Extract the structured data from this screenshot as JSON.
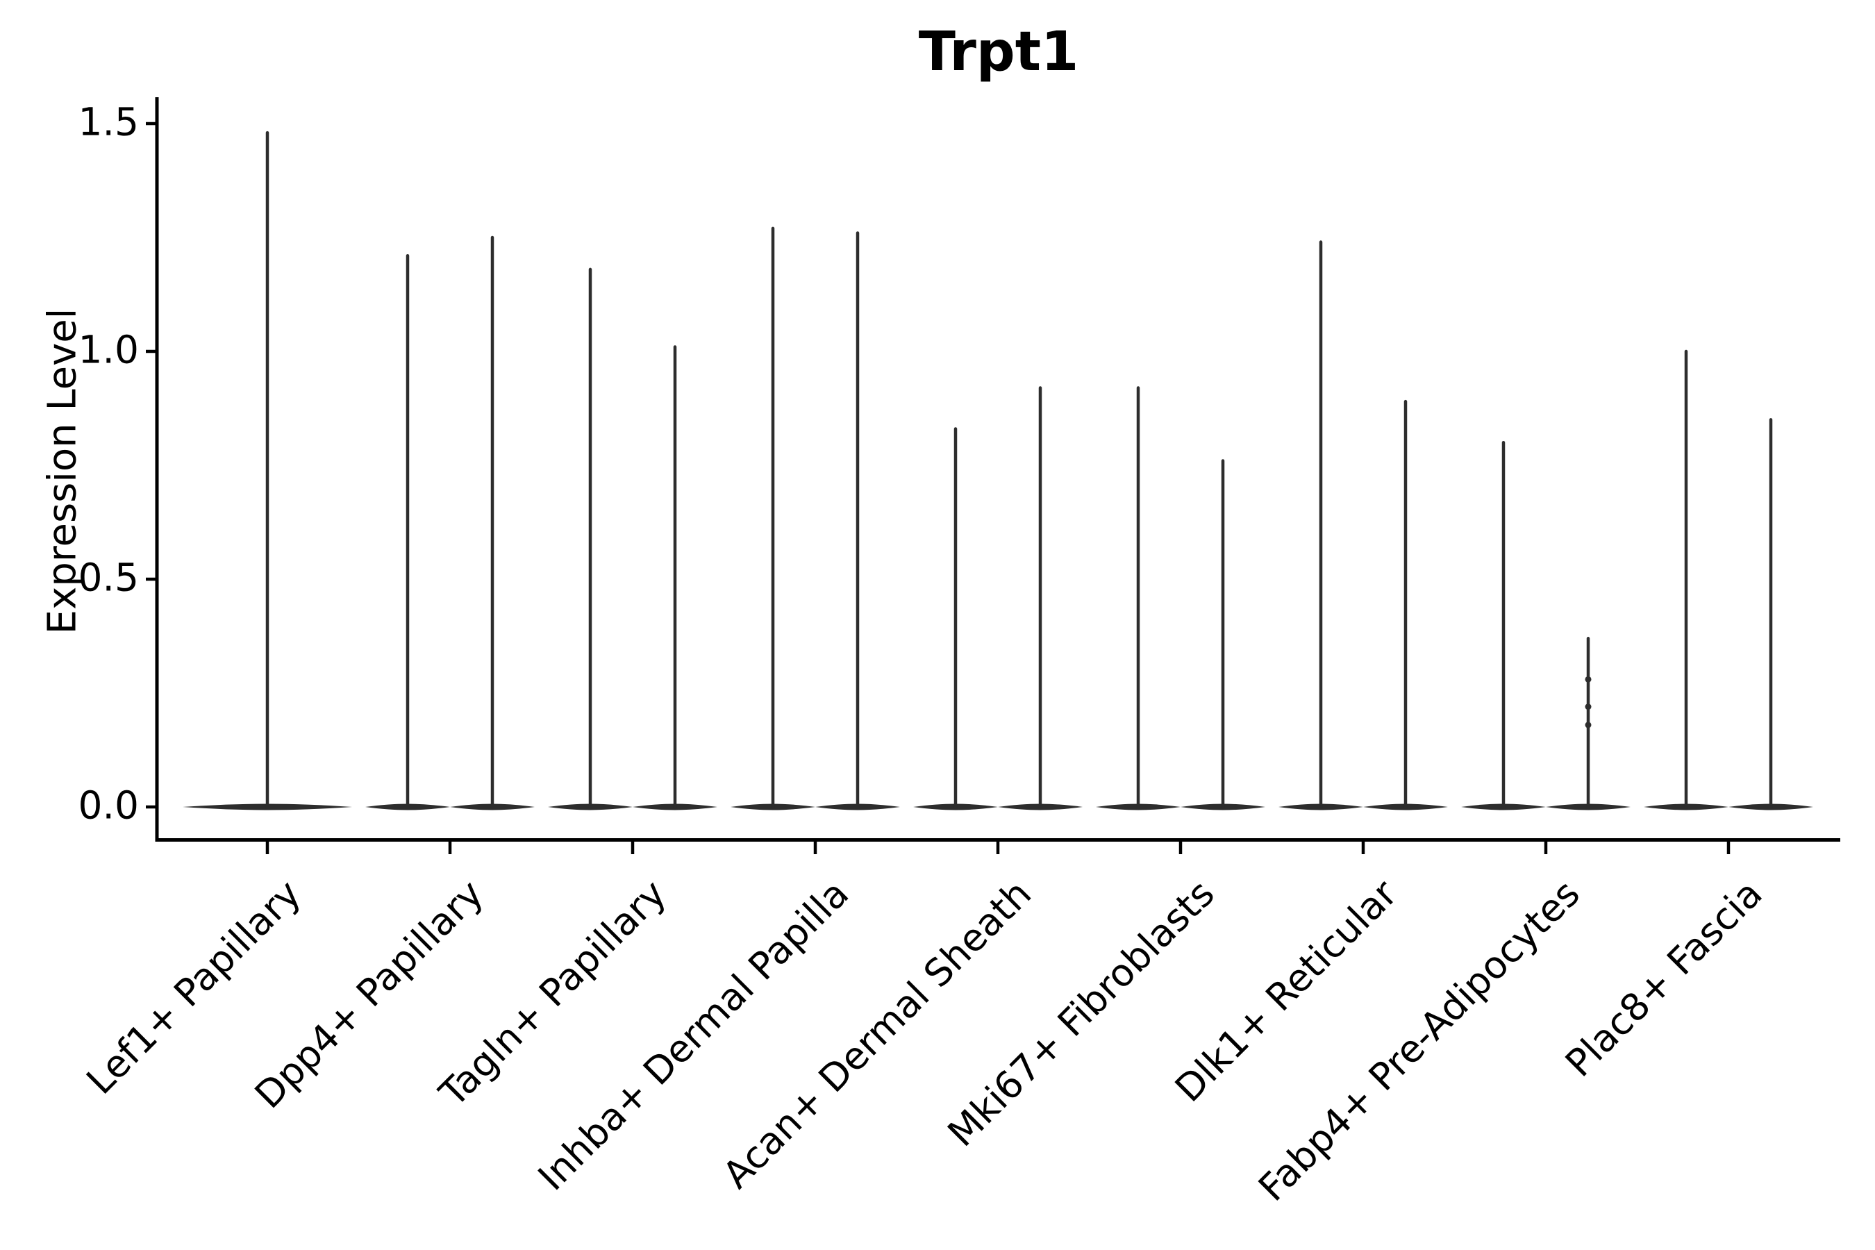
{
  "figure": {
    "title": "Trpt1",
    "ylabel": "Expression Level"
  },
  "chart_data": {
    "type": "violin",
    "title": "Trpt1",
    "xlabel": "",
    "ylabel": "Expression Level",
    "ylim": [
      -0.072,
      1.554
    ],
    "grid": false,
    "legend": "none",
    "baseline_value": 0.0,
    "ytick_labels": [
      "0.0",
      "0.5",
      "1.0",
      "1.5"
    ],
    "ytick_values": [
      0.0,
      0.5,
      1.0,
      1.5
    ],
    "violin_color": "#2d2d2d",
    "axis_color": "#000000",
    "categories": [
      {
        "label": "Lef1+ Papillary",
        "violins": [
          {
            "position": "center",
            "max_expression": 1.48
          }
        ]
      },
      {
        "label": "Dpp4+ Papillary",
        "violins": [
          {
            "position": "left",
            "max_expression": 1.21
          },
          {
            "position": "right",
            "max_expression": 1.25
          }
        ]
      },
      {
        "label": "Tagln+ Papillary",
        "violins": [
          {
            "position": "left",
            "max_expression": 1.18
          },
          {
            "position": "right",
            "max_expression": 1.01
          }
        ]
      },
      {
        "label": "Inhba+ Dermal Papilla",
        "violins": [
          {
            "position": "left",
            "max_expression": 1.27
          },
          {
            "position": "right",
            "max_expression": 1.26
          }
        ]
      },
      {
        "label": "Acan+ Dermal Sheath",
        "violins": [
          {
            "position": "left",
            "max_expression": 0.83
          },
          {
            "position": "right",
            "max_expression": 0.92
          }
        ]
      },
      {
        "label": "Mki67+ Fibroblasts",
        "violins": [
          {
            "position": "left",
            "max_expression": 0.92
          },
          {
            "position": "right",
            "max_expression": 0.76
          }
        ]
      },
      {
        "label": "Dlk1+ Reticular",
        "violins": [
          {
            "position": "left",
            "max_expression": 1.24
          },
          {
            "position": "right",
            "max_expression": 0.89
          }
        ]
      },
      {
        "label": "Fabp4+ Pre-Adipocytes",
        "violins": [
          {
            "position": "left",
            "max_expression": 0.8
          },
          {
            "position": "right",
            "max_expression": 0.37,
            "visible_points": [
              0.28,
              0.22,
              0.18
            ]
          }
        ]
      },
      {
        "label": "Plac8+ Fascia",
        "violins": [
          {
            "position": "left",
            "max_expression": 1.0
          },
          {
            "position": "right",
            "max_expression": 0.85
          }
        ]
      }
    ]
  }
}
